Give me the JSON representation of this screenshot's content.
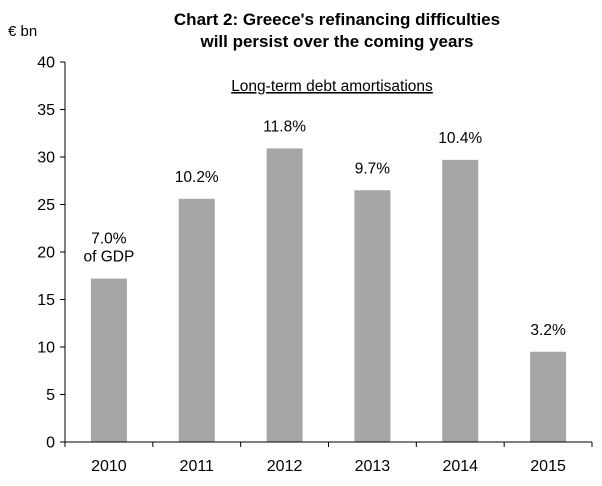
{
  "chart_data": {
    "type": "bar",
    "title_line1": "Chart 2: Greece's  refinancing  difficulties",
    "title_line2": "will persist over the coming years",
    "ylabel": "€ bn",
    "xlabel": "",
    "annotation": "Long-term debt amortisations",
    "categories": [
      "2010",
      "2011",
      "2012",
      "2013",
      "2014",
      "2015"
    ],
    "values": [
      17.2,
      25.6,
      30.9,
      26.5,
      29.7,
      9.5
    ],
    "bar_labels": [
      [
        "7.0%",
        "of GDP"
      ],
      [
        "10.2%"
      ],
      [
        "11.8%"
      ],
      [
        "9.7%"
      ],
      [
        "10.4%"
      ],
      [
        "3.2%"
      ]
    ],
    "ylim": [
      0,
      40
    ],
    "yticks": [
      0,
      5,
      10,
      15,
      20,
      25,
      30,
      35,
      40
    ],
    "ytick_labels": [
      "0",
      "5",
      "10",
      "15",
      "20",
      "25",
      "30",
      "35",
      "40"
    ],
    "bar_color": "#a6a6a6",
    "grid": false,
    "legend": "none"
  }
}
